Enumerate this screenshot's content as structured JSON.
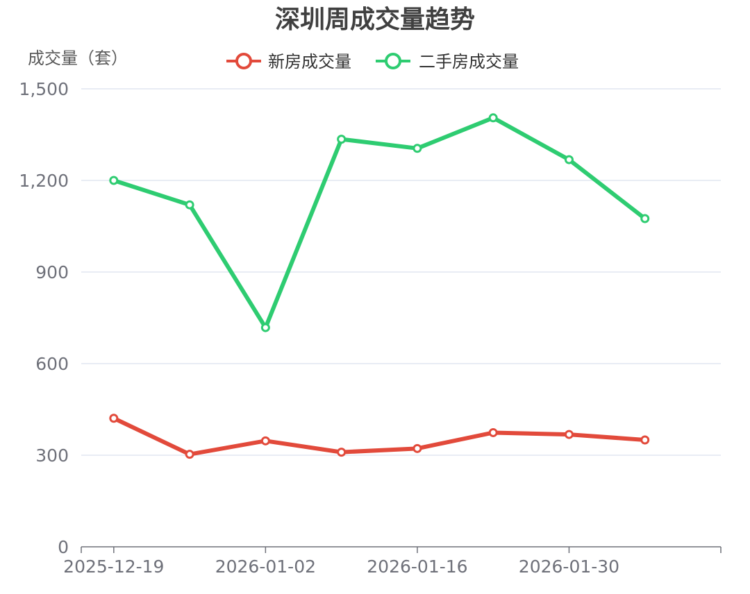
{
  "chart_data": {
    "type": "line",
    "title": "深圳周成交量趋势",
    "xlabel": "",
    "ylabel": "成交量（套）",
    "x_dates": [
      "2025-12-19",
      "2025-12-26",
      "2026-01-02",
      "2026-01-09",
      "2026-01-16",
      "2026-01-23",
      "2026-01-30",
      "2026-02-06"
    ],
    "x_tick_labels": [
      "2025-12-19",
      "2026-01-02",
      "2026-01-16",
      "2026-01-30"
    ],
    "x_range": [
      "2025-12-16",
      "2026-02-13"
    ],
    "y_tick_labels": [
      "0",
      "300",
      "600",
      "900",
      "1,200",
      "1,500"
    ],
    "ylim": [
      0,
      1500
    ],
    "y_ticks": [
      0,
      300,
      600,
      900,
      1200,
      1500
    ],
    "grid": true,
    "legend_position": "top",
    "series": [
      {
        "name": "新房成交量",
        "color": "#e24a3b",
        "values": [
          421,
          303,
          347,
          310,
          322,
          374,
          368,
          350
        ]
      },
      {
        "name": "二手房成交量",
        "color": "#2ecc71",
        "values": [
          1200,
          1120,
          718,
          1335,
          1305,
          1405,
          1268,
          1075
        ]
      }
    ]
  }
}
